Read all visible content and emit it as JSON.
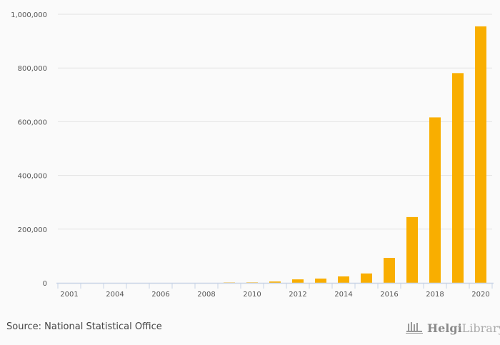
{
  "chart_data": {
    "type": "bar",
    "categories": [
      "2001",
      "2003",
      "2004",
      "2005",
      "2006",
      "2007",
      "2008",
      "2009",
      "2010",
      "2011",
      "2012",
      "2013",
      "2014",
      "2015",
      "2016",
      "2017",
      "2018",
      "2019",
      "2020"
    ],
    "values": [
      0,
      0,
      0,
      0,
      0,
      0,
      0,
      1500,
      1800,
      5000,
      13000,
      16000,
      24000,
      35000,
      93000,
      245000,
      616000,
      781000,
      955000
    ],
    "shown_tick_labels": [
      "2001",
      "2004",
      "2006",
      "2008",
      "2010",
      "2012",
      "2014",
      "2016",
      "2018",
      "2020"
    ],
    "y_ticks": [
      0,
      200000,
      400000,
      600000,
      800000,
      1000000
    ],
    "y_tick_labels": [
      "0",
      "200,000",
      "400,000",
      "600,000",
      "800,000",
      "1,000,000"
    ],
    "ylim": [
      0,
      1000000
    ],
    "title": "",
    "xlabel": "",
    "ylabel": "",
    "grid": true,
    "bar_color": "#f9ae00"
  },
  "footer": {
    "source": "Source: National Statistical Office",
    "logo_text": "HelgiLibrary."
  }
}
